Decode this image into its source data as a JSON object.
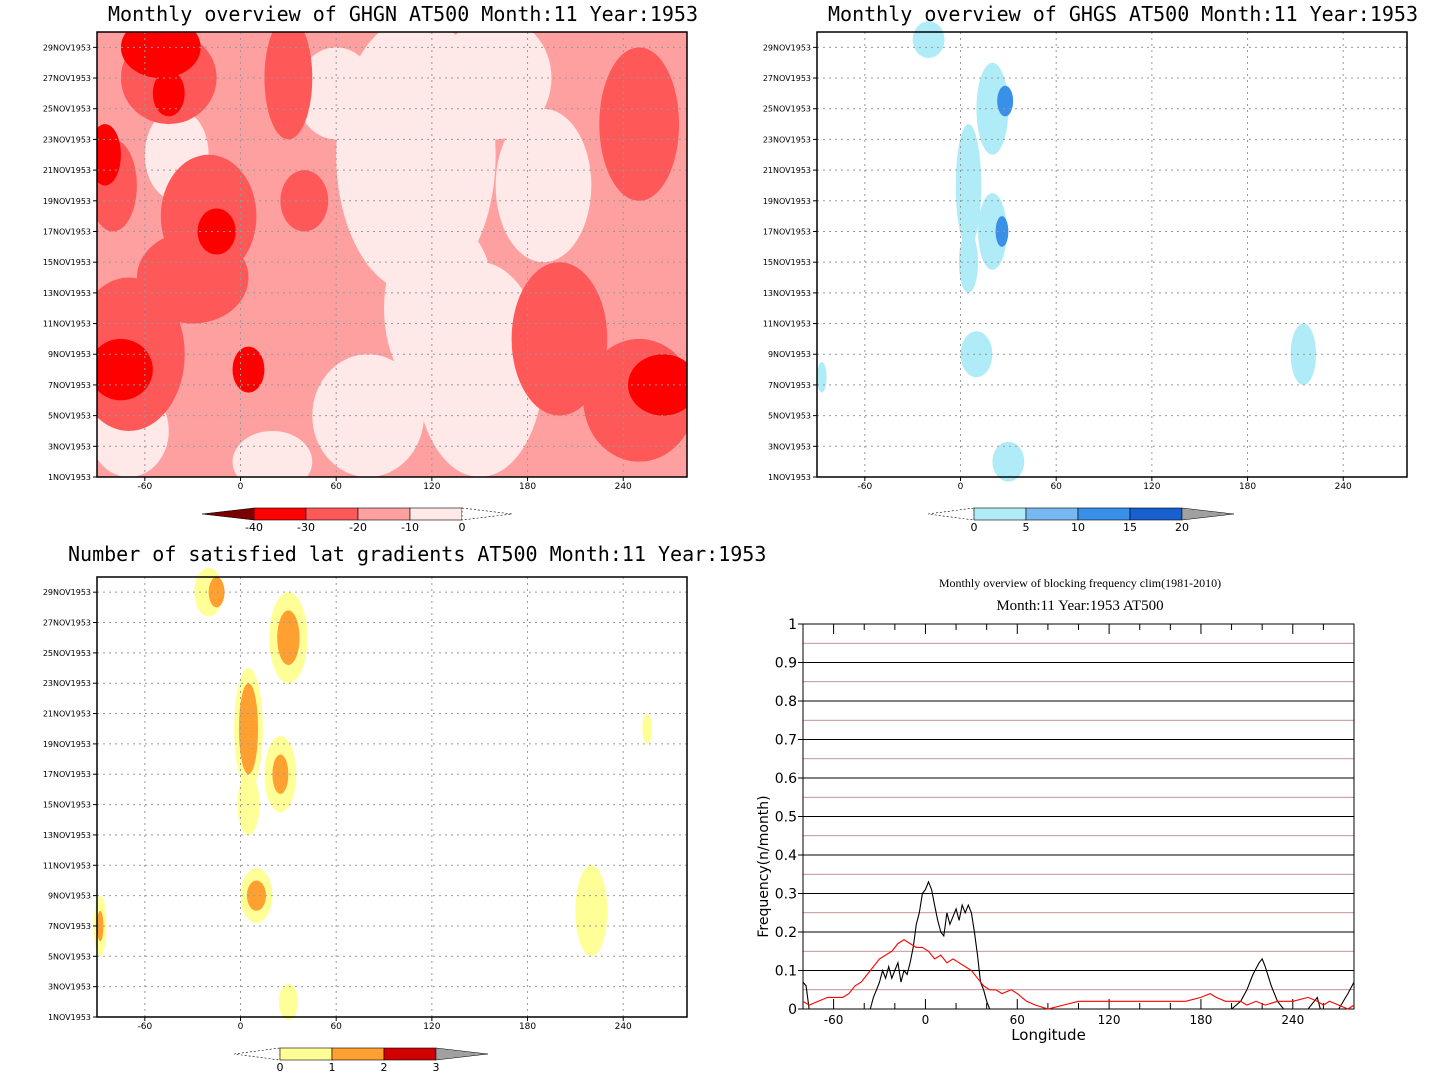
{
  "panels": {
    "ghgn": {
      "title": "Monthly overview of GHGN AT500 Month:11 Year:1953",
      "colorbar": {
        "labels": [
          "-40",
          "-30",
          "-20",
          "-10",
          "0"
        ],
        "colors": [
          "#7a0000",
          "#ff0000",
          "#ff5858",
          "#ffa0a0",
          "#ffe8e8"
        ]
      }
    },
    "ghgs": {
      "title": "Monthly overview of GHGS AT500 Month:11 Year:1953",
      "colorbar": {
        "labels": [
          "0",
          "5",
          "10",
          "15",
          "20"
        ],
        "colors": [
          "#b0ecf8",
          "#78b8f0",
          "#3890e8",
          "#1860d0",
          "#a0a0a0"
        ]
      }
    },
    "grad": {
      "title": "Number of satisfied lat gradients AT500 Month:11 Year:1953",
      "colorbar": {
        "labels": [
          "0",
          "1",
          "2",
          "3"
        ],
        "colors": [
          "#ffff98",
          "#ffa030",
          "#d00000",
          "#a0a0a0"
        ]
      }
    },
    "freq": {
      "title": "Monthly overview of blocking frequency clim(1981-2010)",
      "subtitle": "Month:11 Year:1953  AT500",
      "ylabel": "Frequency(n/month)",
      "xlabel": "Longitude"
    }
  },
  "axes": {
    "date_ticks": [
      "1NOV1953",
      "3NOV1953",
      "5NOV1953",
      "7NOV1953",
      "9NOV1953",
      "11NOV1953",
      "13NOV1953",
      "15NOV1953",
      "17NOV1953",
      "19NOV1953",
      "21NOV1953",
      "23NOV1953",
      "25NOV1953",
      "27NOV1953",
      "29NOV1953"
    ],
    "lon_ticks": [
      "-60",
      "0",
      "60",
      "120",
      "180",
      "240"
    ],
    "freq_y_ticks": [
      "0",
      "0.1",
      "0.2",
      "0.3",
      "0.4",
      "0.5",
      "0.6",
      "0.7",
      "0.8",
      "0.9",
      "1"
    ]
  },
  "chart_data": [
    {
      "type": "heatmap",
      "title": "Monthly overview of GHGN AT500 Month:11 Year:1953",
      "x": "longitude",
      "xlim": [
        -90,
        280
      ],
      "y": "date",
      "ylim": [
        "1NOV1953",
        "30NOV1953"
      ],
      "legend_levels": [
        -40,
        -30,
        -20,
        -10,
        0
      ]
    },
    {
      "type": "heatmap",
      "title": "Monthly overview of GHGS AT500 Month:11 Year:1953",
      "x": "longitude",
      "xlim": [
        -90,
        280
      ],
      "y": "date",
      "ylim": [
        "1NOV1953",
        "30NOV1953"
      ],
      "legend_levels": [
        0,
        5,
        10,
        15,
        20
      ]
    },
    {
      "type": "heatmap",
      "title": "Number of satisfied lat gradients AT500 Month:11 Year:1953",
      "x": "longitude",
      "xlim": [
        -90,
        280
      ],
      "y": "date",
      "ylim": [
        "1NOV1953",
        "30NOV1953"
      ],
      "legend_levels": [
        0,
        1,
        2,
        3
      ]
    },
    {
      "type": "line",
      "title": "Monthly overview of blocking frequency clim(1981-2010)",
      "subtitle": "Month:11 Year:1953  AT500",
      "xlabel": "Longitude",
      "ylabel": "Frequency(n/month)",
      "xlim": [
        -80,
        280
      ],
      "ylim": [
        0,
        1
      ],
      "series": [
        {
          "color": "#000000",
          "x": [
            -80,
            -78,
            -76,
            -74,
            -72,
            -70,
            -60,
            -50,
            -40,
            -36,
            -34,
            -32,
            -30,
            -28,
            -26,
            -24,
            -22,
            -20,
            -18,
            -16,
            -14,
            -12,
            -10,
            -8,
            -6,
            -4,
            -2,
            0,
            2,
            4,
            6,
            8,
            10,
            12,
            14,
            16,
            18,
            20,
            22,
            24,
            26,
            28,
            30,
            32,
            34,
            36,
            38,
            40,
            42,
            44,
            46,
            50,
            60,
            120,
            180,
            200,
            206,
            210,
            214,
            218,
            220,
            222,
            226,
            230,
            234,
            240,
            250,
            256,
            258,
            262,
            266,
            270,
            276,
            280
          ],
          "y": [
            0.07,
            0.06,
            0.0,
            0.0,
            0.0,
            0.0,
            0.0,
            0.0,
            0.0,
            0.0,
            0.03,
            0.05,
            0.07,
            0.1,
            0.08,
            0.11,
            0.08,
            0.1,
            0.12,
            0.07,
            0.1,
            0.09,
            0.12,
            0.16,
            0.22,
            0.25,
            0.3,
            0.31,
            0.33,
            0.31,
            0.27,
            0.23,
            0.2,
            0.19,
            0.25,
            0.22,
            0.24,
            0.26,
            0.23,
            0.27,
            0.25,
            0.27,
            0.25,
            0.2,
            0.14,
            0.07,
            0.05,
            0.02,
            0.0,
            0.0,
            0.0,
            0.0,
            0.0,
            0.0,
            0.0,
            0.0,
            0.02,
            0.05,
            0.09,
            0.12,
            0.13,
            0.11,
            0.06,
            0.02,
            0.0,
            0.0,
            0.0,
            0.03,
            0.0,
            0.0,
            0.0,
            0.0,
            0.04,
            0.07
          ]
        },
        {
          "color": "#ff0000",
          "x": [
            -80,
            -76,
            -70,
            -64,
            -60,
            -54,
            -50,
            -46,
            -42,
            -38,
            -34,
            -30,
            -26,
            -22,
            -18,
            -14,
            -10,
            -6,
            -2,
            2,
            6,
            10,
            14,
            18,
            22,
            26,
            30,
            34,
            38,
            42,
            46,
            50,
            56,
            60,
            66,
            72,
            80,
            90,
            100,
            110,
            120,
            130,
            140,
            150,
            160,
            170,
            180,
            186,
            190,
            196,
            200,
            206,
            210,
            216,
            222,
            230,
            240,
            250,
            256,
            260,
            264,
            270,
            276,
            280
          ],
          "y": [
            0.02,
            0.01,
            0.02,
            0.03,
            0.03,
            0.03,
            0.04,
            0.06,
            0.07,
            0.09,
            0.11,
            0.13,
            0.14,
            0.15,
            0.17,
            0.18,
            0.17,
            0.16,
            0.16,
            0.15,
            0.13,
            0.14,
            0.12,
            0.13,
            0.12,
            0.11,
            0.1,
            0.08,
            0.06,
            0.05,
            0.05,
            0.04,
            0.05,
            0.04,
            0.02,
            0.01,
            0.0,
            0.01,
            0.02,
            0.02,
            0.02,
            0.02,
            0.02,
            0.02,
            0.02,
            0.02,
            0.03,
            0.04,
            0.03,
            0.02,
            0.02,
            0.02,
            0.01,
            0.02,
            0.01,
            0.02,
            0.02,
            0.03,
            0.02,
            0.01,
            0.02,
            0.01,
            0.0,
            0.01
          ]
        }
      ]
    }
  ]
}
